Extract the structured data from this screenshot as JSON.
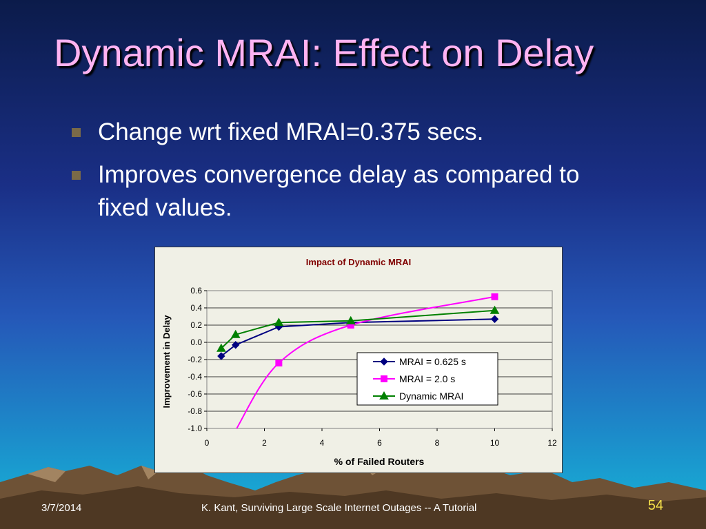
{
  "slide": {
    "title": "Dynamic MRAI: Effect on Delay",
    "bullets": [
      "Change wrt fixed MRAI=0.375 secs.",
      "Improves convergence delay as compared to fixed values."
    ],
    "footer_date": "3/7/2014",
    "footer_text": "K. Kant, Surviving Large Scale Internet Outages -- A Tutorial",
    "page_number": "54"
  },
  "chart_data": {
    "type": "line",
    "title": "Impact of Dynamic MRAI",
    "xlabel": "% of Failed Routers",
    "ylabel": "Improvement in Delay",
    "xlim": [
      0,
      12
    ],
    "ylim": [
      -1.0,
      0.6
    ],
    "x_ticks": [
      "0",
      "2",
      "4",
      "6",
      "8",
      "10",
      "12"
    ],
    "y_ticks": [
      "0.6",
      "0.4",
      "0.2",
      "0.0",
      "-0.2",
      "-0.4",
      "-0.6",
      "-0.8",
      "-1.0"
    ],
    "grid": true,
    "legend_position": "lower-right",
    "series": [
      {
        "name": "MRAI = 0.625 s",
        "color": "#000080",
        "marker": "diamond",
        "x": [
          0.5,
          1,
          2.5,
          5,
          10
        ],
        "y": [
          -0.16,
          -0.03,
          0.18,
          0.23,
          0.27
        ]
      },
      {
        "name": "MRAI = 2.0 s",
        "color": "#ff00ff",
        "marker": "square",
        "x": [
          1,
          2.5,
          5,
          10
        ],
        "y": [
          -1.02,
          -0.24,
          0.2,
          0.53
        ]
      },
      {
        "name": "Dynamic MRAI",
        "color": "#008000",
        "marker": "triangle",
        "x": [
          0.5,
          1,
          2.5,
          5,
          10
        ],
        "y": [
          -0.07,
          0.09,
          0.23,
          0.25,
          0.37
        ]
      }
    ]
  }
}
